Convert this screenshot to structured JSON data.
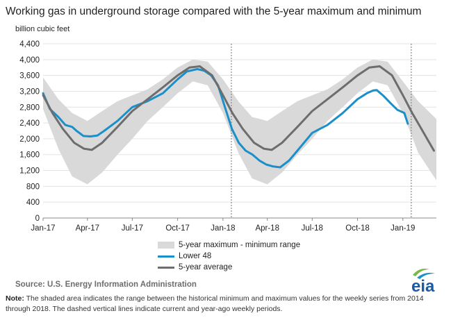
{
  "header": {
    "title": "Working gas in underground storage compared with the 5-year maximum and minimum",
    "unit": "billion cubic feet"
  },
  "legend": {
    "range": "5-year maximum - minimum range",
    "lower48": "Lower 48",
    "average": "5-year average"
  },
  "footer": {
    "source": "Source:  U.S. Energy Information Administration",
    "note_label": "Note:",
    "note_text": "The shaded area indicates the range between the historical minimum and maximum values for the weekly series from 2014 through 2018. The dashed vertical lines indicate current and year-ago weekly periods.",
    "logo_text": "eia"
  },
  "colors": {
    "range_fill": "#d9d9d9",
    "lower48": "#1a8fc9",
    "average": "#6d6d6d",
    "marker": "#888888",
    "logo_green": "#7ab648",
    "logo_blue": "#1a8fc9"
  },
  "chart_data": {
    "type": "line",
    "ylabel": "billion cubic feet",
    "ylim": [
      0,
      4400
    ],
    "yticks": [
      "0",
      "400",
      "800",
      "1,200",
      "1,600",
      "2,000",
      "2,400",
      "2,800",
      "3,200",
      "3,600",
      "4,000",
      "4,400"
    ],
    "x_tick_labels": [
      "Jan-17",
      "Apr-17",
      "Jul-17",
      "Oct-17",
      "Jan-18",
      "Apr-18",
      "Jul-18",
      "Oct-18",
      "Jan-19"
    ],
    "x_start": "2017-01-01",
    "x_end": "2019-03-10",
    "grid": "horizontal",
    "dashed_markers": [
      "2018-01-18",
      "2019-01-18"
    ],
    "series": [
      {
        "name": "5-year maximum - minimum range",
        "kind": "band",
        "x": [
          "2017-01-01",
          "2017-02-01",
          "2017-03-01",
          "2017-04-01",
          "2017-05-01",
          "2017-06-01",
          "2017-07-01",
          "2017-08-01",
          "2017-09-01",
          "2017-10-01",
          "2017-11-01",
          "2017-12-01",
          "2018-01-01",
          "2018-02-01",
          "2018-03-01",
          "2018-04-01",
          "2018-05-01",
          "2018-06-01",
          "2018-07-01",
          "2018-08-01",
          "2018-09-01",
          "2018-10-01",
          "2018-11-01",
          "2018-12-01",
          "2019-01-01",
          "2019-02-01",
          "2019-03-10"
        ],
        "upper": [
          3550,
          3000,
          2650,
          2450,
          2700,
          2950,
          3100,
          3250,
          3500,
          3800,
          4000,
          3950,
          3500,
          2950,
          2550,
          2450,
          2700,
          2950,
          3100,
          3250,
          3500,
          3800,
          4000,
          3950,
          3450,
          2950,
          2500
        ],
        "lower": [
          2750,
          1750,
          1050,
          850,
          1150,
          1600,
          2000,
          2450,
          2800,
          3150,
          3450,
          3350,
          2650,
          1650,
          1000,
          850,
          1150,
          1600,
          2000,
          2450,
          2800,
          3150,
          3450,
          3350,
          2650,
          1650,
          950
        ]
      },
      {
        "name": "Lower 48",
        "x": [
          "2017-01-01",
          "2017-01-15",
          "2017-02-01",
          "2017-02-15",
          "2017-03-01",
          "2017-03-10",
          "2017-03-24",
          "2017-04-07",
          "2017-04-21",
          "2017-05-05",
          "2017-06-01",
          "2017-07-01",
          "2017-08-01",
          "2017-09-01",
          "2017-10-01",
          "2017-10-20",
          "2017-11-10",
          "2017-11-24",
          "2017-12-08",
          "2017-12-22",
          "2018-01-05",
          "2018-01-19",
          "2018-02-02",
          "2018-02-16",
          "2018-03-02",
          "2018-03-16",
          "2018-03-30",
          "2018-04-13",
          "2018-04-27",
          "2018-05-15",
          "2018-06-01",
          "2018-07-01",
          "2018-08-01",
          "2018-09-01",
          "2018-10-01",
          "2018-10-20",
          "2018-11-02",
          "2018-11-09",
          "2018-11-23",
          "2018-12-07",
          "2018-12-21",
          "2019-01-04",
          "2019-01-11"
        ],
        "y": [
          3150,
          2750,
          2550,
          2350,
          2300,
          2200,
          2070,
          2060,
          2080,
          2200,
          2450,
          2800,
          2950,
          3150,
          3500,
          3700,
          3760,
          3720,
          3600,
          3350,
          2800,
          2250,
          1900,
          1700,
          1600,
          1450,
          1350,
          1300,
          1280,
          1450,
          1700,
          2150,
          2350,
          2650,
          3000,
          3150,
          3220,
          3230,
          3080,
          2900,
          2730,
          2650,
          2380
        ]
      },
      {
        "name": "5-year average",
        "x": [
          "2017-01-01",
          "2017-01-20",
          "2017-02-10",
          "2017-03-05",
          "2017-03-25",
          "2017-04-10",
          "2017-05-01",
          "2017-06-01",
          "2017-07-01",
          "2017-08-01",
          "2017-09-01",
          "2017-10-01",
          "2017-10-25",
          "2017-11-15",
          "2017-12-10",
          "2018-01-01",
          "2018-01-20",
          "2018-02-10",
          "2018-03-05",
          "2018-03-25",
          "2018-04-10",
          "2018-05-01",
          "2018-06-01",
          "2018-07-01",
          "2018-08-01",
          "2018-09-01",
          "2018-10-01",
          "2018-10-25",
          "2018-11-15",
          "2018-12-10",
          "2019-01-01",
          "2019-01-20",
          "2019-02-10",
          "2019-03-05"
        ],
        "y": [
          3100,
          2650,
          2250,
          1900,
          1750,
          1720,
          1900,
          2300,
          2700,
          3000,
          3300,
          3600,
          3800,
          3830,
          3600,
          3100,
          2650,
          2250,
          1900,
          1750,
          1720,
          1900,
          2300,
          2700,
          3000,
          3300,
          3600,
          3800,
          3830,
          3600,
          3100,
          2650,
          2200,
          1700
        ]
      }
    ]
  }
}
